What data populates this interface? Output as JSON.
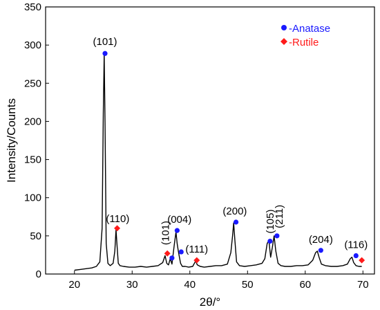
{
  "chart_data": {
    "type": "line",
    "xlabel": "2θ/°",
    "ylabel": "Intensity/Counts",
    "xlim": [
      15,
      72
    ],
    "ylim": [
      0,
      350
    ],
    "xticks": [
      20,
      30,
      40,
      50,
      60,
      70
    ],
    "yticks": [
      0,
      50,
      100,
      150,
      200,
      250,
      300,
      350
    ],
    "grid": false,
    "legend_position": "top-right",
    "legend": [
      {
        "marker": "circle",
        "label": "-Anatase",
        "color": "#1a1aff"
      },
      {
        "marker": "diamond",
        "label": "-Rutile",
        "color": "#ff1a1a"
      }
    ],
    "line_color": "#000000",
    "series": [
      {
        "x": [
          20.0,
          21.0,
          22.0,
          23.0,
          23.8,
          24.4,
          24.8,
          25.0,
          25.15,
          25.3,
          25.5,
          25.8,
          26.2,
          26.7,
          27.0,
          27.2,
          27.4,
          27.6,
          27.9,
          28.5,
          29.5,
          30.5,
          31.5,
          32.5,
          33.5,
          34.5,
          35.3,
          35.7,
          36.0,
          36.3,
          36.6,
          36.9,
          37.3,
          37.6,
          37.8,
          38.0,
          38.2,
          38.4,
          38.7,
          39.2,
          39.8,
          40.5,
          41.0,
          41.3,
          41.8,
          42.5,
          43.5,
          44.5,
          45.5,
          46.5,
          47.1,
          47.4,
          47.6,
          47.8,
          48.1,
          48.6,
          49.5,
          50.5,
          51.5,
          52.5,
          53.0,
          53.4,
          53.7,
          54.0,
          54.3,
          54.6,
          54.9,
          55.3,
          55.8,
          56.5,
          57.5,
          58.5,
          59.5,
          60.5,
          61.3,
          61.8,
          62.1,
          62.4,
          62.8,
          63.5,
          64.5,
          65.5,
          66.5,
          67.3,
          67.8,
          68.1,
          68.4,
          68.8,
          69.3,
          69.8
        ],
        "y": [
          5,
          6,
          7,
          8,
          10,
          16,
          60,
          210,
          289,
          200,
          40,
          14,
          11,
          14,
          30,
          58,
          35,
          14,
          11,
          10,
          9,
          9,
          10,
          9,
          10,
          11,
          15,
          24,
          14,
          12,
          20,
          13,
          38,
          55,
          40,
          30,
          22,
          14,
          10,
          10,
          9,
          10,
          17,
          12,
          10,
          9,
          10,
          11,
          11,
          13,
          28,
          50,
          67,
          45,
          16,
          11,
          10,
          11,
          12,
          14,
          20,
          40,
          44,
          22,
          35,
          50,
          30,
          14,
          11,
          10,
          10,
          11,
          11,
          12,
          18,
          28,
          30,
          22,
          13,
          11,
          10,
          10,
          11,
          13,
          20,
          22,
          15,
          11,
          10,
          10
        ]
      }
    ],
    "anatase_markers": [
      {
        "x": 25.3,
        "y": 289
      },
      {
        "x": 36.9,
        "y": 21
      },
      {
        "x": 37.8,
        "y": 57
      },
      {
        "x": 38.5,
        "y": 29
      },
      {
        "x": 48.0,
        "y": 68
      },
      {
        "x": 53.9,
        "y": 43
      },
      {
        "x": 55.1,
        "y": 50
      },
      {
        "x": 62.7,
        "y": 31
      },
      {
        "x": 68.8,
        "y": 24
      }
    ],
    "rutile_markers": [
      {
        "x": 27.4,
        "y": 60
      },
      {
        "x": 36.1,
        "y": 27
      },
      {
        "x": 41.2,
        "y": 18
      },
      {
        "x": 69.8,
        "y": 18
      }
    ],
    "annotations": [
      {
        "text": "(101)",
        "x": 25.3,
        "y": 300,
        "rotate": false
      },
      {
        "text": "(110)",
        "x": 27.5,
        "y": 68,
        "rotate": false
      },
      {
        "text": "(101)",
        "x": 35.8,
        "y": 38,
        "rotate": true
      },
      {
        "text": "(004)",
        "x": 38.2,
        "y": 67,
        "rotate": false
      },
      {
        "text": "(111)",
        "x": 41.2,
        "y": 28,
        "rotate": false
      },
      {
        "text": "(200)",
        "x": 47.8,
        "y": 78,
        "rotate": false
      },
      {
        "text": "(105)",
        "x": 53.9,
        "y": 53,
        "rotate": true
      },
      {
        "text": "(211)",
        "x": 55.5,
        "y": 60,
        "rotate": true
      },
      {
        "text": "(204)",
        "x": 62.7,
        "y": 41,
        "rotate": false
      },
      {
        "text": "(116)",
        "x": 68.8,
        "y": 34,
        "rotate": false
      }
    ]
  }
}
